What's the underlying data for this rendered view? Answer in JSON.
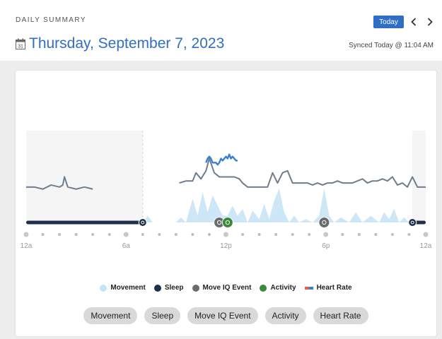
{
  "header": {
    "section_label": "DAILY SUMMARY",
    "date_title": "Thursday, September 7, 2023",
    "calendar_day": "31",
    "today_button": "Today",
    "synced_text": "Synced Today @ 11:04 AM"
  },
  "chart_data": {
    "type": "area",
    "x_unit": "hour",
    "xlim": [
      0,
      24
    ],
    "x_ticks": [
      {
        "x": 0,
        "label": "12a"
      },
      {
        "x": 6,
        "label": "6a"
      },
      {
        "x": 12,
        "label": "12p"
      },
      {
        "x": 18,
        "label": "6p"
      },
      {
        "x": 24,
        "label": "12a"
      }
    ],
    "sleep_intervals": [
      [
        0,
        7
      ],
      [
        23.2,
        24
      ]
    ],
    "events": [
      {
        "type": "wake",
        "x": 7.0,
        "icon": "alarm-icon"
      },
      {
        "type": "move_iq",
        "x": 11.6,
        "icon": "walk-icon"
      },
      {
        "type": "activity",
        "x": 12.1,
        "icon": "bike-icon"
      },
      {
        "type": "move_iq",
        "x": 17.9,
        "icon": "walk-icon"
      },
      {
        "type": "sleep_start",
        "x": 23.2,
        "icon": "sleep-icon"
      }
    ],
    "series": [
      {
        "name": "Movement",
        "color": "#c5e3f6",
        "x": [
          7.0,
          7.3,
          7.6,
          9.0,
          9.3,
          9.6,
          10.0,
          10.3,
          10.6,
          10.9,
          11.2,
          11.5,
          11.8,
          12.1,
          12.4,
          12.7,
          13.0,
          13.3,
          13.6,
          14.0,
          14.3,
          14.6,
          14.9,
          15.2,
          15.5,
          15.8,
          16.1,
          16.4,
          16.8,
          17.2,
          17.6,
          17.9,
          18.2,
          18.5,
          18.9,
          19.4,
          19.8,
          20.2,
          20.7,
          21.2,
          21.5,
          21.8,
          22.1,
          22.4,
          22.7,
          23.0
        ],
        "values": [
          0,
          0.2,
          0,
          0,
          0.15,
          0,
          0.7,
          0.2,
          0.9,
          0.3,
          0.8,
          0.5,
          0.2,
          0.2,
          0.5,
          0.2,
          0.4,
          0,
          0.35,
          0.1,
          0.55,
          0.1,
          0.65,
          1.0,
          0.3,
          0,
          0.2,
          0,
          0.1,
          0,
          0.2,
          1.0,
          0.2,
          0,
          0.15,
          0,
          0.3,
          0,
          0.2,
          0,
          0.3,
          0.1,
          0.4,
          0,
          0.15,
          0
        ]
      },
      {
        "name": "Heart Rate",
        "color": "#6e7e8c",
        "x": [
          0,
          0.5,
          1.0,
          1.5,
          2.0,
          2.2,
          2.3,
          2.5,
          3.0,
          3.5,
          4.0,
          9.2,
          9.6,
          10.0,
          10.2,
          10.5,
          10.8,
          11.0,
          11.3,
          11.6,
          11.9,
          12.2,
          12.5,
          12.8,
          13.0,
          13.3,
          13.6,
          13.9,
          14.2,
          14.5,
          14.8,
          15.1,
          15.4,
          15.7,
          16.0,
          16.3,
          16.6,
          16.9,
          17.2,
          17.5,
          17.8,
          18.1,
          18.4,
          18.7,
          19.0,
          19.3,
          19.6,
          19.9,
          20.2,
          20.5,
          20.8,
          21.1,
          21.4,
          21.7,
          22.0,
          22.3,
          22.6,
          22.9,
          23.2,
          23.5,
          24.0
        ],
        "values": [
          62,
          62,
          61,
          63,
          62,
          63,
          67,
          62,
          61,
          62,
          61,
          64,
          65,
          65,
          69,
          66,
          70,
          76,
          69,
          67,
          67,
          67,
          67,
          66,
          64,
          62,
          62,
          62,
          62,
          62,
          69,
          64,
          69,
          70,
          64,
          64,
          64,
          64,
          63,
          64,
          63,
          64,
          64,
          65,
          64,
          64,
          64,
          65,
          66,
          64,
          65,
          65,
          66,
          65,
          67,
          63,
          64,
          62,
          67,
          62,
          62
        ]
      },
      {
        "name": "Heart Rate (activity)",
        "color": "#3b7fd4",
        "x": [
          10.8,
          10.9,
          11.0,
          11.1,
          11.2,
          11.4,
          11.5,
          11.6,
          11.7,
          11.8,
          11.9,
          12.0,
          12.1,
          12.2,
          12.3,
          12.4,
          12.5,
          12.6,
          12.7
        ],
        "values": [
          74,
          76,
          77,
          76,
          74,
          74,
          73,
          74,
          76,
          75,
          76,
          77,
          76,
          78,
          76,
          77,
          76,
          75,
          75
        ]
      }
    ]
  },
  "legend": [
    {
      "label": "Movement",
      "color": "#c5e3f6",
      "kind": "dot"
    },
    {
      "label": "Sleep",
      "color": "#1d2f4a",
      "kind": "dot"
    },
    {
      "label": "Move IQ Event",
      "color": "#6b6b6b",
      "kind": "dot"
    },
    {
      "label": "Activity",
      "color": "#3a8a3a",
      "kind": "dot"
    },
    {
      "label": "Heart Rate",
      "color": "#e8603c",
      "kind": "bar"
    }
  ],
  "filters": [
    "Movement",
    "Sleep",
    "Move IQ Event",
    "Activity",
    "Heart Rate"
  ],
  "colors": {
    "accent": "#2f6ec4",
    "sleep": "#1d2f4a",
    "movement": "#c5e3f6",
    "heart_rate": "#6e7e8c",
    "heart_rate_active": "#3b7fd4",
    "move_iq": "#6b6b6b",
    "activity": "#3a8a3a"
  }
}
